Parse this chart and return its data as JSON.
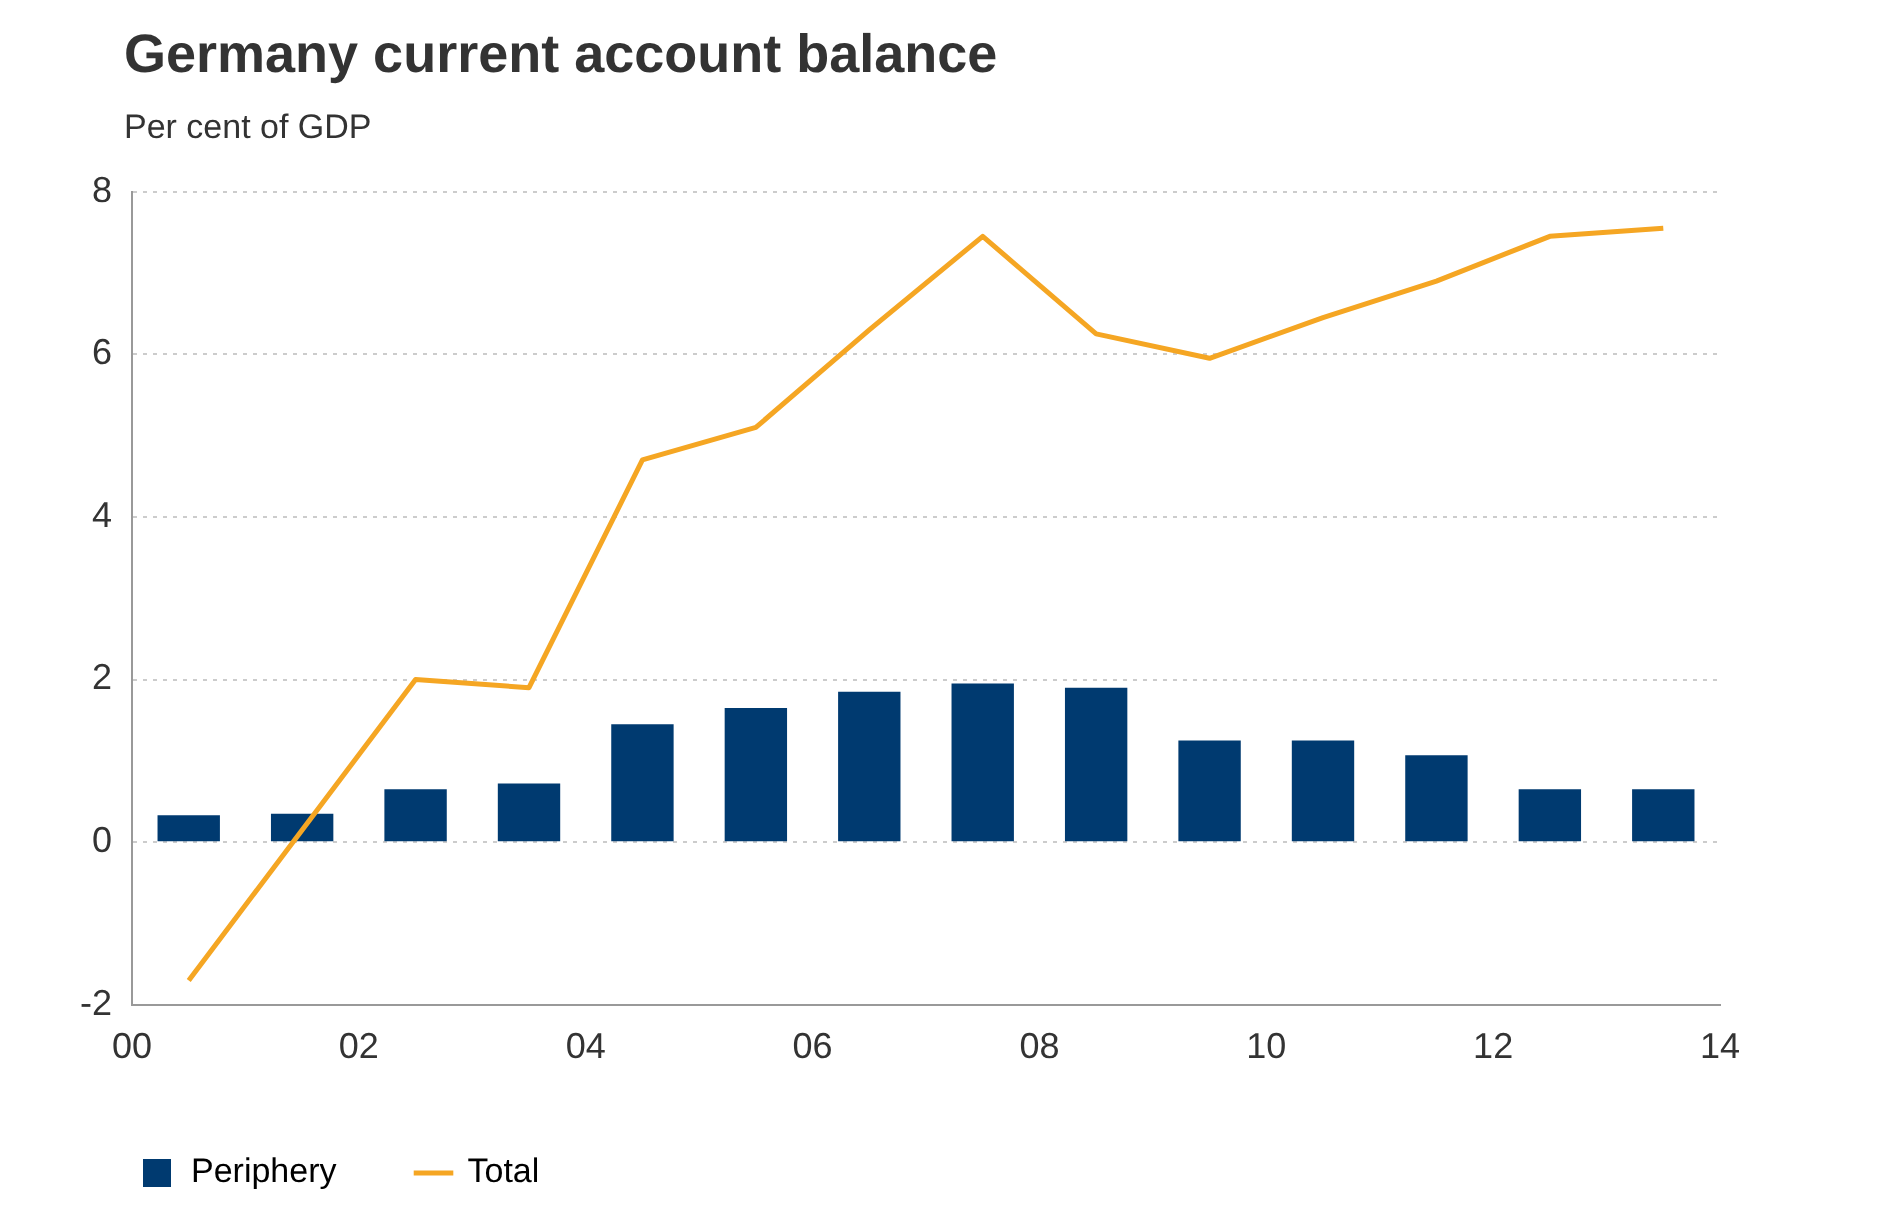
{
  "chart_data": {
    "type": "bar",
    "title": "Germany current account balance",
    "subtitle": "Per cent of GDP",
    "x": [
      0.5,
      1.5,
      2.5,
      3.5,
      4.5,
      5.5,
      6.5,
      7.5,
      8.5,
      9.5,
      10.5,
      11.5,
      12.5,
      13.5
    ],
    "series": [
      {
        "name": "Periphery",
        "color": "#003a70",
        "values": [
          0.33,
          0.35,
          0.65,
          0.72,
          1.45,
          1.65,
          1.85,
          1.95,
          1.9,
          1.25,
          1.25,
          1.07,
          0.65,
          0.65
        ]
      },
      {
        "name": "Total",
        "type": "line",
        "color": "#f5a623",
        "values": [
          -1.7,
          0.15,
          2.0,
          1.9,
          4.7,
          5.1,
          6.3,
          7.45,
          6.25,
          5.95,
          6.45,
          6.9,
          7.45,
          7.55
        ]
      }
    ],
    "xlim": [
      0,
      14
    ],
    "xticks": [
      {
        "value": 0,
        "label": "00"
      },
      {
        "value": 2,
        "label": "02"
      },
      {
        "value": 4,
        "label": "04"
      },
      {
        "value": 6,
        "label": "06"
      },
      {
        "value": 8,
        "label": "08"
      },
      {
        "value": 10,
        "label": "10"
      },
      {
        "value": 12,
        "label": "12"
      },
      {
        "value": 14,
        "label": "14"
      }
    ],
    "ylim": [
      -2,
      8
    ],
    "yticks": [
      -2,
      0,
      2,
      4,
      6,
      8
    ],
    "grid": "y",
    "legend": "bottom left",
    "marker": "none",
    "line_style": "solid"
  }
}
